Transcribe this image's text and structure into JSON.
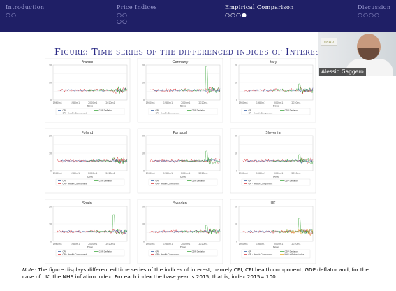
{
  "nav": [
    {
      "label": "Introduction",
      "dots": [
        "○○"
      ],
      "active": false
    },
    {
      "label": "Price Indices",
      "dots": [
        "○○",
        "○○"
      ],
      "active": false
    },
    {
      "label": "Empirical Comparison",
      "dots": [
        "○○○●"
      ],
      "active": true
    },
    {
      "label": "Discussion",
      "dots": [
        "○○○○"
      ],
      "active": false
    }
  ],
  "title": {
    "label": "Figure:",
    "text": "Time series of the differenced indices of Interest"
  },
  "participant": {
    "name": "Alessio Gaggero",
    "logo_text": "UNITO"
  },
  "note": {
    "label": "Note:",
    "text": "The figure displays differenced time series of the indices of interest, namely CPI, CPI health component, GDP deflator and, for the case of UK, the NHS inflation index. For each index the base year is 2015, that is, index 2015= 100."
  },
  "colors": {
    "header": "#1f1f66",
    "title": "#2a2a85",
    "cpi": "#1f4e9b",
    "health": "#d6242a",
    "gdp": "#2ca02c",
    "nhs": "#e8a317"
  },
  "chart_data": {
    "type": "line",
    "xlabel": "Date",
    "xticks": [
      "1960m1",
      "1980m1",
      "2000m1",
      "2020m1"
    ],
    "legend": [
      "CPI",
      "GDP Deflator",
      "CPI - Health Component",
      "NHS inflation index"
    ],
    "panels": [
      {
        "name": "France",
        "spike": 0.3
      },
      {
        "name": "Germany",
        "spike": 1.0
      },
      {
        "name": "Italy",
        "spike": 0.5
      },
      {
        "name": "Poland",
        "spike": 0.4
      },
      {
        "name": "Portugal",
        "spike": 0.6
      },
      {
        "name": "Slovenia",
        "spike": 0.5
      },
      {
        "name": "Spain",
        "spike": 0.8
      },
      {
        "name": "Sweden",
        "spike": 0.5
      },
      {
        "name": "UK",
        "spike": 0.7,
        "extra": "NHS inflation index"
      }
    ]
  }
}
